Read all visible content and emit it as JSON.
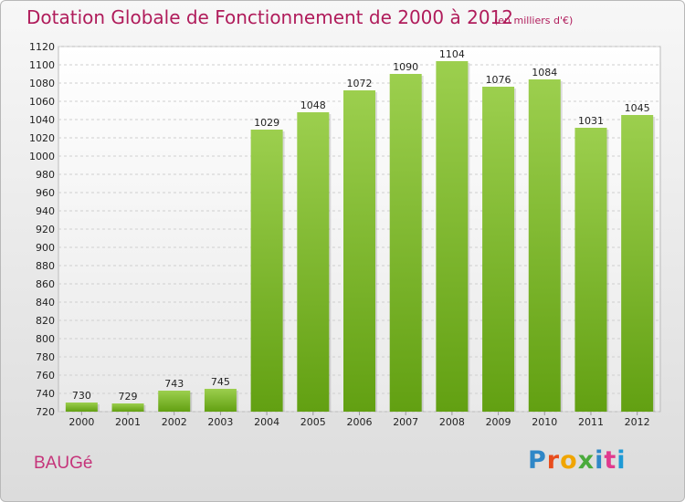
{
  "chart_data": {
    "type": "bar",
    "title": "Dotation Globale de Fonctionnement de 2000 à 2012",
    "subtitle": "(en milliers d'€)",
    "categories": [
      "2000",
      "2001",
      "2002",
      "2003",
      "2004",
      "2005",
      "2006",
      "2007",
      "2008",
      "2009",
      "2010",
      "2011",
      "2012"
    ],
    "values": [
      730,
      729,
      743,
      745,
      1029,
      1048,
      1072,
      1090,
      1104,
      1076,
      1084,
      1031,
      1045
    ],
    "ylim": [
      720,
      1120
    ],
    "ytick_step": 20,
    "grid": true,
    "bar_color": "#8cc63f"
  },
  "footer": {
    "place": "BAUGé",
    "brand": "Proxiti",
    "brand_colors": [
      "#2f87c7",
      "#e84c1c",
      "#f0a500",
      "#4aaa3c",
      "#2f87c7",
      "#e03a8e",
      "#1e9ad6"
    ]
  }
}
